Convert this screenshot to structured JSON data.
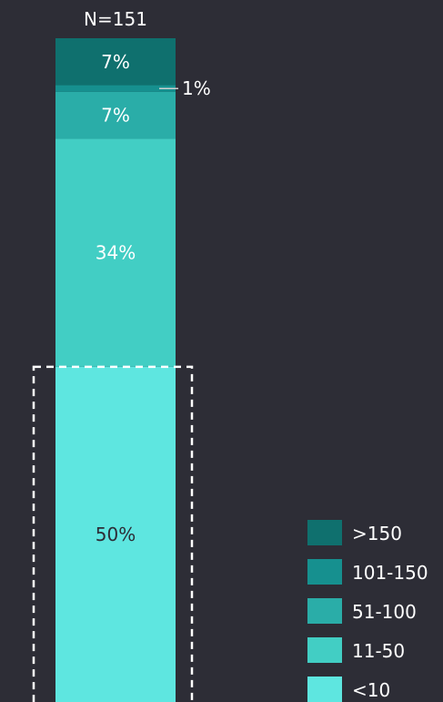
{
  "chart_data": {
    "type": "bar",
    "stacked": true,
    "n_label": "N=151",
    "categories": [
      "N=151"
    ],
    "series": [
      {
        "name": "<10",
        "value": 50,
        "label": "50%",
        "color": "#5ee6e0"
      },
      {
        "name": "11-50",
        "value": 34,
        "label": "34%",
        "color": "#42cec4"
      },
      {
        "name": "51-100",
        "value": 7,
        "label": "7%",
        "color": "#2aada8"
      },
      {
        "name": "101-150",
        "value": 1,
        "label": "1%",
        "color": "#16908f"
      },
      {
        "name": ">150",
        "value": 7,
        "label": "7%",
        "color": "#0f706e"
      }
    ],
    "legend_order": [
      ">150",
      "101-150",
      "51-100",
      "11-50",
      "<10"
    ],
    "highlight_segment": "<10",
    "legend_position": "bottom-right",
    "ylim": [
      0,
      99
    ],
    "grid": false
  },
  "colors": {
    "background": "#2d2d36",
    "text": "#ffffff",
    "segment_label_light": "#ffffff",
    "segment_label_dark": "#2d2d36",
    "highlight_border": "#ffffff"
  }
}
